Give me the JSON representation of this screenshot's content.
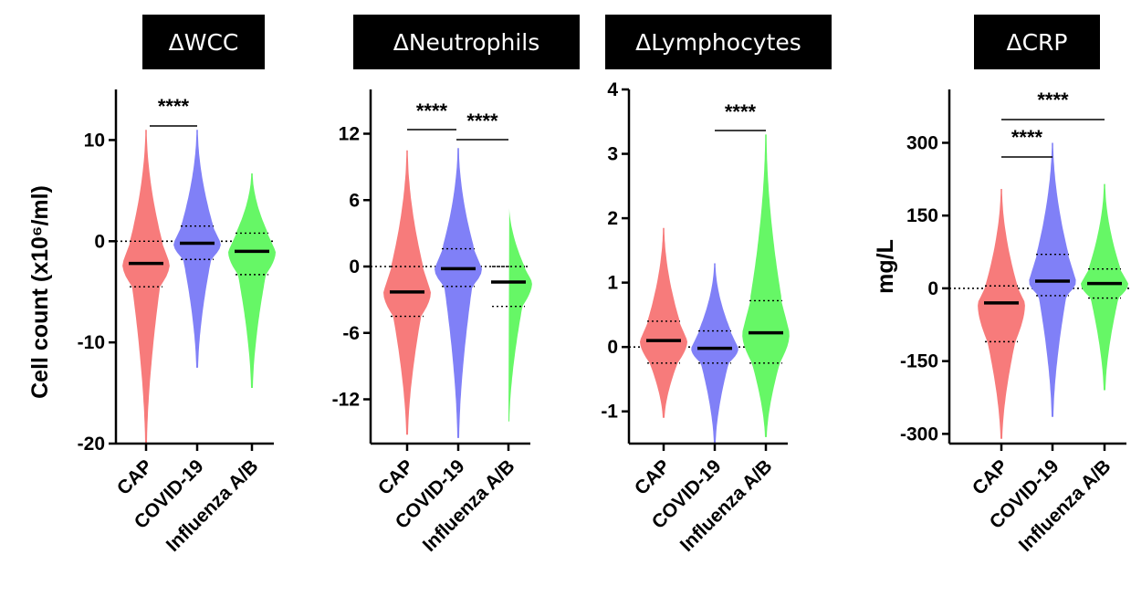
{
  "chart_data": [
    {
      "type": "violin",
      "title": "ΔWCC",
      "ylabel": "Cell count (x10⁶/ml)",
      "ylim": [
        -20,
        15
      ],
      "yticks": [
        -20,
        -10,
        0,
        10
      ],
      "yticklabels": [
        "-20",
        "-10",
        "0",
        "10"
      ],
      "categories": [
        "CAP",
        "COVID-19",
        "Influenza A/B"
      ],
      "series": [
        {
          "name": "CAP",
          "color": "#f77b7b",
          "min": -20,
          "max": 11,
          "median": -2.2,
          "q1": -4.5,
          "q3": 0.0
        },
        {
          "name": "COVID-19",
          "color": "#8080f7",
          "min": -12.5,
          "max": 11,
          "median": -0.2,
          "q1": -1.8,
          "q3": 1.5
        },
        {
          "name": "Influenza A/B",
          "color": "#66f766",
          "min": -14.5,
          "max": 6.7,
          "median": -1.0,
          "q1": -3.3,
          "q3": 0.8
        }
      ],
      "reference_line": 0,
      "significance": [
        {
          "label": "****",
          "from": "CAP",
          "to": "COVID-19"
        }
      ]
    },
    {
      "type": "violin",
      "title": "ΔNeutrophils",
      "ylabel": "",
      "ylim": [
        -16,
        16
      ],
      "yticks": [
        -12,
        -6,
        0,
        6,
        12
      ],
      "yticklabels": [
        "-12",
        "-6",
        "0",
        "6",
        "12"
      ],
      "categories": [
        "CAP",
        "COVID-19",
        "Influenza A/B"
      ],
      "series": [
        {
          "name": "CAP",
          "color": "#f77b7b",
          "min": -15.2,
          "max": 10.5,
          "median": -2.3,
          "q1": -4.5,
          "q3": 0.0
        },
        {
          "name": "COVID-19",
          "color": "#8080f7",
          "min": -15.5,
          "max": 10.7,
          "median": -0.2,
          "q1": -1.8,
          "q3": 1.6
        },
        {
          "name": "Influenza A/B",
          "color": "#66f766",
          "min": -14,
          "max": 5.6,
          "median": -1.4,
          "q1": -3.6,
          "q3": 0.0
        }
      ],
      "reference_line": 0,
      "significance": [
        {
          "label": "****",
          "from": "CAP",
          "to": "COVID-19"
        },
        {
          "label": "****",
          "from": "COVID-19",
          "to": "Influenza A/B"
        }
      ]
    },
    {
      "type": "violin",
      "title": "ΔLymphocytes",
      "ylabel": "",
      "ylim": [
        -1.5,
        4
      ],
      "yticks": [
        -1,
        0,
        1,
        2,
        3,
        4
      ],
      "yticklabels": [
        "-1",
        "0",
        "1",
        "2",
        "3",
        "4"
      ],
      "categories": [
        "CAP",
        "COVID-19",
        "Influenza A/B"
      ],
      "series": [
        {
          "name": "CAP",
          "color": "#f77b7b",
          "min": -1.1,
          "max": 1.85,
          "median": 0.1,
          "q1": -0.25,
          "q3": 0.4
        },
        {
          "name": "COVID-19",
          "color": "#8080f7",
          "min": -1.5,
          "max": 1.3,
          "median": -0.02,
          "q1": -0.25,
          "q3": 0.25
        },
        {
          "name": "Influenza A/B",
          "color": "#66f766",
          "min": -1.4,
          "max": 3.3,
          "median": 0.22,
          "q1": -0.25,
          "q3": 0.72
        }
      ],
      "reference_line": 0,
      "significance": [
        {
          "label": "****",
          "from": "COVID-19",
          "to": "Influenza A/B"
        }
      ]
    },
    {
      "type": "violin",
      "title": "ΔCRP",
      "ylabel": "mg/L",
      "ylim": [
        -320,
        410
      ],
      "yticks": [
        -300,
        -150,
        0,
        150,
        300
      ],
      "yticklabels": [
        "-300",
        "-150",
        "0",
        "150",
        "300"
      ],
      "categories": [
        "CAP",
        "COVID-19",
        "Influenza A/B"
      ],
      "series": [
        {
          "name": "CAP",
          "color": "#f77b7b",
          "min": -310,
          "max": 205,
          "median": -30,
          "q1": -110,
          "q3": 5
        },
        {
          "name": "COVID-19",
          "color": "#8080f7",
          "min": -265,
          "max": 300,
          "median": 15,
          "q1": -15,
          "q3": 70
        },
        {
          "name": "Influenza A/B",
          "color": "#66f766",
          "min": -210,
          "max": 215,
          "median": 10,
          "q1": -20,
          "q3": 40
        }
      ],
      "reference_line": 0,
      "significance": [
        {
          "label": "****",
          "from": "CAP",
          "to": "COVID-19"
        },
        {
          "label": "****",
          "from": "CAP",
          "to": "Influenza A/B"
        }
      ]
    }
  ]
}
